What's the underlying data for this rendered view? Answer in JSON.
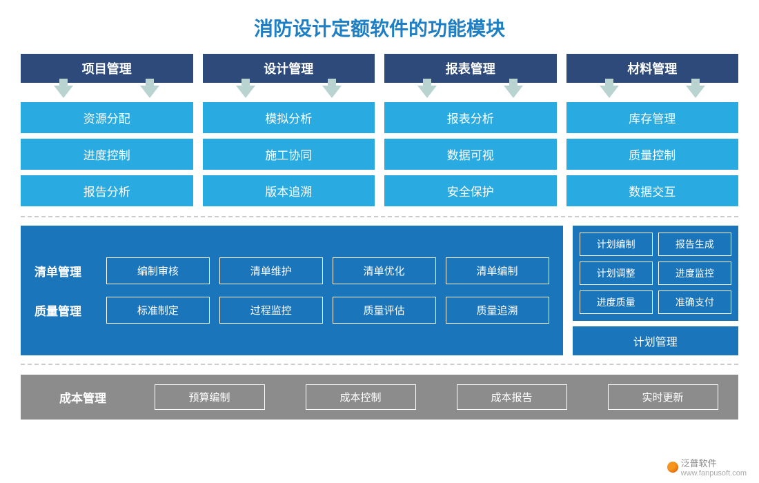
{
  "title": "消防设计定额软件的功能模块",
  "colors": {
    "title": "#1e7fc4",
    "header_bg": "#2d4a7a",
    "header_fg": "#ffffff",
    "arrow": "#b9d3d0",
    "subbox_bg": "#29abe2",
    "subbox_fg": "#ffffff",
    "mid_bg": "#1b75bb",
    "mid_fg": "#ffffff",
    "mid_border": "#ffffff",
    "bottom_bg": "#8c8c8c",
    "bottom_fg": "#ffffff",
    "divider": "#cccccc"
  },
  "top_groups": [
    {
      "header": "项目管理",
      "items": [
        "资源分配",
        "进度控制",
        "报告分析"
      ]
    },
    {
      "header": "设计管理",
      "items": [
        "模拟分析",
        "施工协同",
        "版本追溯"
      ]
    },
    {
      "header": "报表管理",
      "items": [
        "报表分析",
        "数据可视",
        "安全保护"
      ]
    },
    {
      "header": "材料管理",
      "items": [
        "库存管理",
        "质量控制",
        "数据交互"
      ]
    }
  ],
  "middle_left": {
    "rows": [
      {
        "label": "清单管理",
        "items": [
          "编制审核",
          "清单维护",
          "清单优化",
          "清单编制"
        ]
      },
      {
        "label": "质量管理",
        "items": [
          "标准制定",
          "过程监控",
          "质量评估",
          "质量追溯"
        ]
      }
    ]
  },
  "middle_right": {
    "grid": [
      "计划编制",
      "报告生成",
      "计划调整",
      "进度监控",
      "进度质量",
      "准确支付"
    ],
    "footer": "计划管理"
  },
  "bottom": {
    "label": "成本管理",
    "items": [
      "预算编制",
      "成本控制",
      "成本报告",
      "实时更新"
    ]
  },
  "watermark": {
    "brand": "泛普软件",
    "url": "www.fanpusoft.com"
  }
}
